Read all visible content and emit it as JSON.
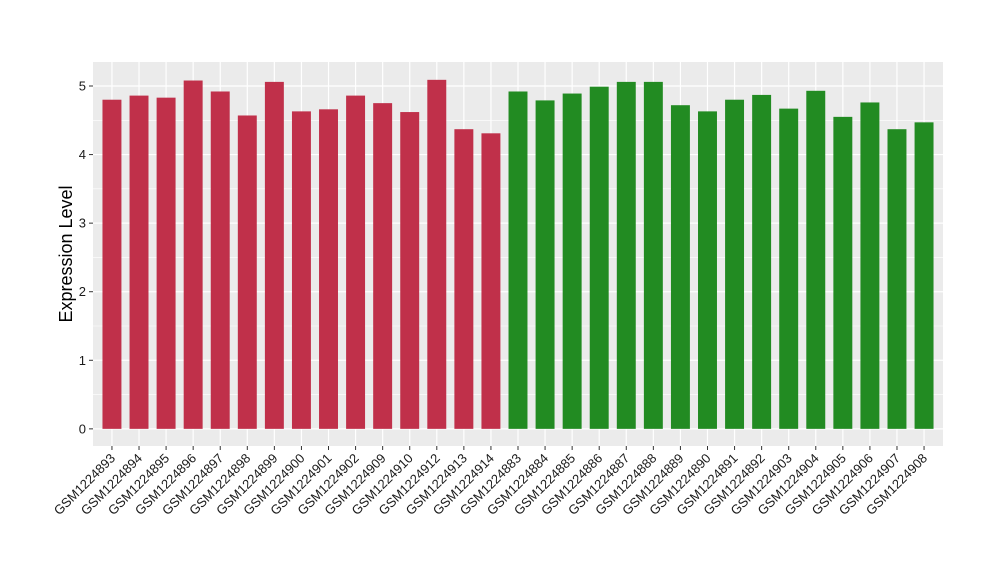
{
  "chart_data": {
    "type": "bar",
    "title": "",
    "xlabel": "",
    "ylabel": "Expression Level",
    "ylim": [
      -0.25,
      5.35
    ],
    "yticks": [
      0,
      1,
      2,
      3,
      4,
      5
    ],
    "grid": true,
    "colors": {
      "group1": "#C0304A",
      "group2": "#228B22",
      "panel": "#EBEBEB",
      "grid": "#FFFFFF"
    },
    "categories": [
      "GSM1224893",
      "GSM1224894",
      "GSM1224895",
      "GSM1224896",
      "GSM1224897",
      "GSM1224898",
      "GSM1224899",
      "GSM1224900",
      "GSM1224901",
      "GSM1224902",
      "GSM1224909",
      "GSM1224910",
      "GSM1224912",
      "GSM1224913",
      "GSM1224914",
      "GSM1224883",
      "GSM1224884",
      "GSM1224885",
      "GSM1224886",
      "GSM1224887",
      "GSM1224888",
      "GSM1224889",
      "GSM1224890",
      "GSM1224891",
      "GSM1224892",
      "GSM1224903",
      "GSM1224904",
      "GSM1224905",
      "GSM1224906",
      "GSM1224907",
      "GSM1224908"
    ],
    "values": [
      4.8,
      4.86,
      4.83,
      5.08,
      4.92,
      4.57,
      5.06,
      4.63,
      4.66,
      4.86,
      4.75,
      4.62,
      5.09,
      4.37,
      4.31,
      4.92,
      4.79,
      4.89,
      4.99,
      5.06,
      5.06,
      4.72,
      4.63,
      4.8,
      4.87,
      4.67,
      4.93,
      4.55,
      4.76,
      4.37,
      4.47
    ],
    "groups": [
      "group1",
      "group1",
      "group1",
      "group1",
      "group1",
      "group1",
      "group1",
      "group1",
      "group1",
      "group1",
      "group1",
      "group1",
      "group1",
      "group1",
      "group1",
      "group2",
      "group2",
      "group2",
      "group2",
      "group2",
      "group2",
      "group2",
      "group2",
      "group2",
      "group2",
      "group2",
      "group2",
      "group2",
      "group2",
      "group2",
      "group2"
    ]
  }
}
